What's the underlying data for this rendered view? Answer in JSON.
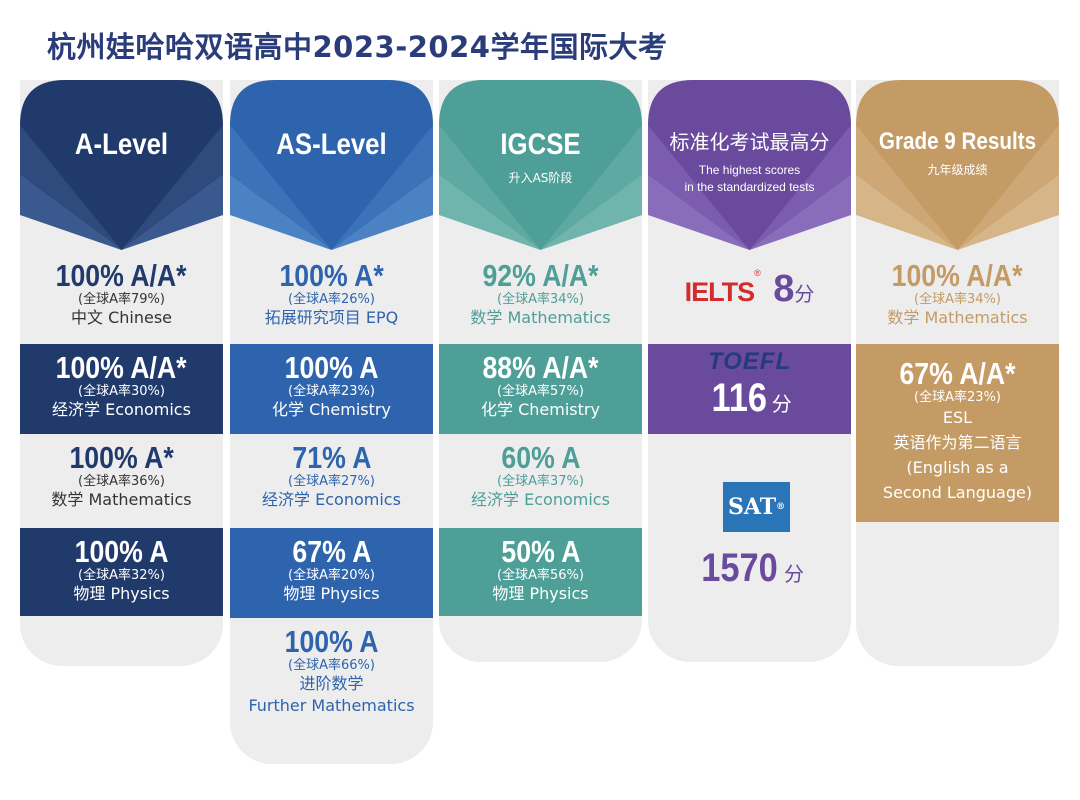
{
  "title": "杭州娃哈哈双语高中2023-2024学年国际大考",
  "colors": {
    "a_level": "#213a6c",
    "as_level": "#2e64ad",
    "igcse": "#4d9f97",
    "standardized": "#6a4a9d",
    "grade9": "#c49b64",
    "card_bg": "#ededee"
  },
  "a_level": {
    "heading": "A-Level",
    "rows": [
      {
        "score": "100% A/A*",
        "rate": "(全球A率79%)",
        "subject": "中文 Chinese"
      },
      {
        "score": "100% A/A*",
        "rate": "(全球A率30%)",
        "subject": "经济学 Economics"
      },
      {
        "score": "100% A*",
        "rate": "(全球A率36%)",
        "subject": "数学 Mathematics"
      },
      {
        "score": "100% A",
        "rate": "(全球A率32%)",
        "subject": "物理 Physics"
      }
    ]
  },
  "as_level": {
    "heading": "AS-Level",
    "rows": [
      {
        "score": "100% A*",
        "rate": "(全球A率26%)",
        "subject": "拓展研究项目 EPQ"
      },
      {
        "score": "100% A",
        "rate": "(全球A率23%)",
        "subject": "化学 Chemistry"
      },
      {
        "score": "71% A",
        "rate": "(全球A率27%)",
        "subject": "经济学 Economics"
      },
      {
        "score": "67% A",
        "rate": "(全球A率20%)",
        "subject": "物理 Physics"
      },
      {
        "score": "100% A",
        "rate": "(全球A率66%)",
        "subject": "进阶数学",
        "subject2": "Further Mathematics"
      }
    ]
  },
  "igcse": {
    "heading": "IGCSE",
    "subheading": "升入AS阶段",
    "rows": [
      {
        "score": "92% A/A*",
        "rate": "(全球A率34%)",
        "subject": "数学 Mathematics"
      },
      {
        "score": "88% A/A*",
        "rate": "(全球A率57%)",
        "subject": "化学 Chemistry"
      },
      {
        "score": "60% A",
        "rate": "(全球A率37%)",
        "subject": "经济学 Economics"
      },
      {
        "score": "50% A",
        "rate": "(全球A率56%)",
        "subject": "物理 Physics"
      }
    ]
  },
  "standardized": {
    "heading": "标准化考试最高分",
    "sub1": "The highest scores",
    "sub2": "in the standardized tests",
    "ielts_logo": "IELTS",
    "ielts_score": "8",
    "toefl_logo": "TOEFL",
    "toefl_score": "116",
    "sat_logo": "SAT",
    "sat_score": "1570",
    "unit": "分"
  },
  "grade9": {
    "heading": "Grade 9 Results",
    "subheading": "九年级成绩",
    "rows": [
      {
        "score": "100% A/A*",
        "rate": "(全球A率34%)",
        "subject": "数学 Mathematics"
      },
      {
        "score": "67% A/A*",
        "rate": "(全球A率23%)",
        "subject": "ESL",
        "subject2": "英语作为第二语言",
        "subject3": "(English as a",
        "subject4": "Second Language)"
      }
    ]
  }
}
